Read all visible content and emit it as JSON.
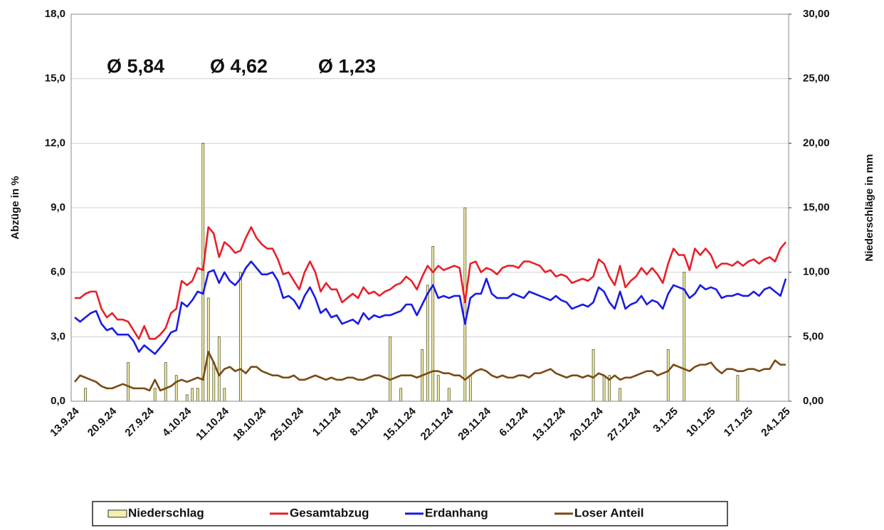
{
  "chart_data": {
    "type": "line",
    "annotations": [
      {
        "text": "Ø 5,84",
        "color": "#e8202a"
      },
      {
        "text": "Ø 4,62",
        "color": "#1a1ae6"
      },
      {
        "text": "Ø 1,23",
        "color": "#7a4a12"
      }
    ],
    "ylabel": "Abzüge in %",
    "y2label": "Niederschläge in mm",
    "ylim": [
      0,
      18
    ],
    "yticks": [
      {
        "value": 0,
        "label": "0,0"
      },
      {
        "value": 3,
        "label": "3,0"
      },
      {
        "value": 6,
        "label": "6,0"
      },
      {
        "value": 9,
        "label": "9,0"
      },
      {
        "value": 12,
        "label": "12,0"
      },
      {
        "value": 15,
        "label": "15,0"
      },
      {
        "value": 18,
        "label": "18,0"
      }
    ],
    "y2lim": [
      0,
      30
    ],
    "y2ticks": [
      {
        "value": 0,
        "label": "0,00"
      },
      {
        "value": 5,
        "label": "5,00"
      },
      {
        "value": 10,
        "label": "10,00"
      },
      {
        "value": 15,
        "label": "15,00"
      },
      {
        "value": 20,
        "label": "20,00"
      },
      {
        "value": 25,
        "label": "25,00"
      },
      {
        "value": 30,
        "label": "30,00"
      }
    ],
    "grid": true,
    "categories": [
      "13.9.24",
      null,
      null,
      null,
      null,
      null,
      null,
      "20.9.24",
      null,
      null,
      null,
      null,
      null,
      null,
      "27.9.24",
      null,
      null,
      null,
      null,
      null,
      null,
      "4.10.24",
      null,
      null,
      null,
      null,
      null,
      null,
      "11.10.24",
      null,
      null,
      null,
      null,
      null,
      null,
      "18.10.24",
      null,
      null,
      null,
      null,
      null,
      null,
      "25.10.24",
      null,
      null,
      null,
      null,
      null,
      null,
      "1.11.24",
      null,
      null,
      null,
      null,
      null,
      null,
      "8.11.24",
      null,
      null,
      null,
      null,
      null,
      null,
      "15.11.24",
      null,
      null,
      null,
      null,
      null,
      null,
      "22.11.24",
      null,
      null,
      null,
      null,
      null,
      null,
      "29.11.24",
      null,
      null,
      null,
      null,
      null,
      null,
      "6.12.24",
      null,
      null,
      null,
      null,
      null,
      null,
      "13.12.24",
      null,
      null,
      null,
      null,
      null,
      null,
      "20.12.24",
      null,
      null,
      null,
      null,
      null,
      null,
      "27.12.24",
      null,
      null,
      null,
      null,
      null,
      null,
      "3.1.25",
      null,
      null,
      null,
      null,
      null,
      null,
      "10.1.25",
      null,
      null,
      null,
      null,
      null,
      null,
      "17.1.25",
      null,
      null,
      null,
      null,
      null,
      null,
      "24.1.25"
    ],
    "series": [
      {
        "name": "Niederschlag",
        "type": "bar",
        "axis": "y2",
        "color": "#f3f0b0",
        "values": [
          0,
          0,
          1,
          0,
          0,
          0,
          0,
          0,
          0,
          0,
          3,
          0,
          0,
          0,
          0,
          1,
          0,
          3,
          0,
          2,
          0,
          0.5,
          1,
          1,
          20,
          8,
          3,
          5,
          1,
          0,
          0,
          10,
          0,
          0,
          0,
          0,
          0,
          0,
          0,
          0,
          0,
          0,
          0,
          0,
          0,
          0,
          0,
          0,
          0,
          0,
          0,
          0,
          0,
          0,
          0,
          0,
          0,
          0,
          0,
          5,
          0,
          1,
          0,
          0,
          0,
          4,
          9,
          12,
          2,
          0,
          1,
          0,
          0,
          15,
          2,
          0,
          0,
          0,
          0,
          0,
          0,
          0,
          0,
          0,
          0,
          0,
          0,
          0,
          0,
          0,
          0,
          0,
          0,
          0,
          0,
          0,
          0,
          4,
          0,
          2,
          2,
          0,
          1,
          0,
          0,
          0,
          0,
          0,
          0,
          0,
          0,
          4,
          0,
          0,
          10,
          0,
          0,
          0,
          0,
          0,
          0,
          0,
          0,
          0,
          2,
          0,
          0,
          0,
          0,
          0,
          0,
          0,
          0,
          0
        ]
      },
      {
        "name": "Gesamtabzug",
        "color": "#e8202a",
        "values": [
          4.8,
          4.8,
          5.0,
          5.1,
          5.1,
          4.3,
          3.9,
          4.1,
          3.8,
          3.8,
          3.7,
          3.3,
          2.9,
          3.5,
          2.9,
          2.9,
          3.1,
          3.4,
          4.1,
          4.3,
          5.6,
          5.4,
          5.6,
          6.2,
          6.1,
          8.1,
          7.8,
          6.7,
          7.4,
          7.2,
          6.9,
          7.0,
          7.6,
          8.1,
          7.6,
          7.3,
          7.1,
          7.1,
          6.6,
          5.9,
          6.0,
          5.6,
          5.2,
          6.0,
          6.5,
          6.0,
          5.1,
          5.5,
          5.2,
          5.2,
          4.6,
          4.8,
          5.0,
          4.8,
          5.3,
          5.0,
          5.1,
          4.9,
          5.1,
          5.2,
          5.4,
          5.5,
          5.8,
          5.6,
          5.2,
          5.8,
          6.3,
          6.0,
          6.3,
          6.1,
          6.2,
          6.3,
          6.2,
          4.6,
          6.4,
          6.5,
          6.0,
          6.2,
          6.1,
          5.9,
          6.2,
          6.3,
          6.3,
          6.2,
          6.5,
          6.5,
          6.4,
          6.3,
          6.0,
          6.1,
          5.8,
          5.9,
          5.8,
          5.5,
          5.6,
          5.7,
          5.6,
          5.8,
          6.6,
          6.4,
          5.8,
          5.4,
          6.3,
          5.3,
          5.6,
          5.8,
          6.2,
          5.9,
          6.2,
          5.9,
          5.5,
          6.4,
          7.1,
          6.8,
          6.8,
          6.1,
          7.1,
          6.8,
          7.1,
          6.8,
          6.2,
          6.4,
          6.4,
          6.3,
          6.5,
          6.3,
          6.5,
          6.6,
          6.4,
          6.6,
          6.7,
          6.5,
          7.1,
          7.4
        ]
      },
      {
        "name": "Erdanhang",
        "color": "#1a1ae6",
        "values": [
          3.9,
          3.7,
          3.9,
          4.1,
          4.2,
          3.6,
          3.3,
          3.4,
          3.1,
          3.1,
          3.1,
          2.8,
          2.3,
          2.6,
          2.4,
          2.2,
          2.5,
          2.8,
          3.2,
          3.3,
          4.6,
          4.4,
          4.7,
          5.1,
          5.0,
          6.0,
          6.1,
          5.5,
          6.0,
          5.6,
          5.4,
          5.7,
          6.2,
          6.5,
          6.2,
          5.9,
          5.9,
          6.0,
          5.6,
          4.8,
          4.9,
          4.7,
          4.3,
          4.9,
          5.3,
          4.8,
          4.1,
          4.3,
          3.9,
          4.0,
          3.6,
          3.7,
          3.8,
          3.6,
          4.1,
          3.8,
          4.0,
          3.9,
          4.0,
          4.0,
          4.1,
          4.2,
          4.5,
          4.5,
          4.0,
          4.5,
          5.0,
          5.4,
          4.8,
          4.9,
          4.8,
          4.9,
          4.9,
          3.6,
          4.8,
          5.0,
          5.0,
          5.7,
          5.0,
          4.8,
          4.8,
          4.8,
          5.0,
          4.9,
          4.8,
          5.1,
          5.0,
          4.9,
          4.8,
          4.7,
          4.9,
          4.7,
          4.6,
          4.3,
          4.4,
          4.5,
          4.4,
          4.6,
          5.3,
          5.1,
          4.6,
          4.3,
          5.1,
          4.3,
          4.5,
          4.6,
          4.9,
          4.5,
          4.7,
          4.6,
          4.3,
          5.0,
          5.4,
          5.3,
          5.2,
          4.8,
          5.0,
          5.4,
          5.2,
          5.3,
          5.2,
          4.8,
          4.9,
          4.9,
          5.0,
          4.9,
          4.9,
          5.1,
          4.9,
          5.2,
          5.3,
          5.1,
          4.9,
          5.7
        ]
      },
      {
        "name": "Loser Anteil",
        "color": "#7a4a12",
        "values": [
          0.9,
          1.2,
          1.1,
          1.0,
          0.9,
          0.7,
          0.6,
          0.6,
          0.7,
          0.8,
          0.7,
          0.6,
          0.6,
          0.6,
          0.5,
          1.0,
          0.5,
          0.6,
          0.7,
          0.9,
          1.0,
          0.9,
          1.0,
          1.1,
          1.0,
          2.3,
          1.8,
          1.2,
          1.5,
          1.6,
          1.4,
          1.5,
          1.3,
          1.6,
          1.6,
          1.4,
          1.3,
          1.2,
          1.2,
          1.1,
          1.1,
          1.2,
          1.0,
          1.0,
          1.1,
          1.2,
          1.1,
          1.0,
          1.1,
          1.0,
          1.0,
          1.1,
          1.1,
          1.0,
          1.0,
          1.1,
          1.2,
          1.2,
          1.1,
          1.0,
          1.1,
          1.2,
          1.2,
          1.2,
          1.1,
          1.2,
          1.3,
          1.4,
          1.4,
          1.3,
          1.3,
          1.2,
          1.2,
          1.0,
          1.2,
          1.4,
          1.5,
          1.4,
          1.2,
          1.1,
          1.2,
          1.1,
          1.1,
          1.2,
          1.2,
          1.1,
          1.3,
          1.3,
          1.4,
          1.5,
          1.3,
          1.2,
          1.1,
          1.2,
          1.2,
          1.1,
          1.2,
          1.1,
          1.3,
          1.2,
          1.0,
          1.2,
          1.0,
          1.1,
          1.1,
          1.2,
          1.3,
          1.4,
          1.4,
          1.2,
          1.3,
          1.4,
          1.7,
          1.6,
          1.5,
          1.4,
          1.6,
          1.7,
          1.7,
          1.8,
          1.5,
          1.3,
          1.5,
          1.5,
          1.4,
          1.4,
          1.5,
          1.5,
          1.4,
          1.5,
          1.5,
          1.9,
          1.7,
          1.7
        ]
      }
    ]
  }
}
